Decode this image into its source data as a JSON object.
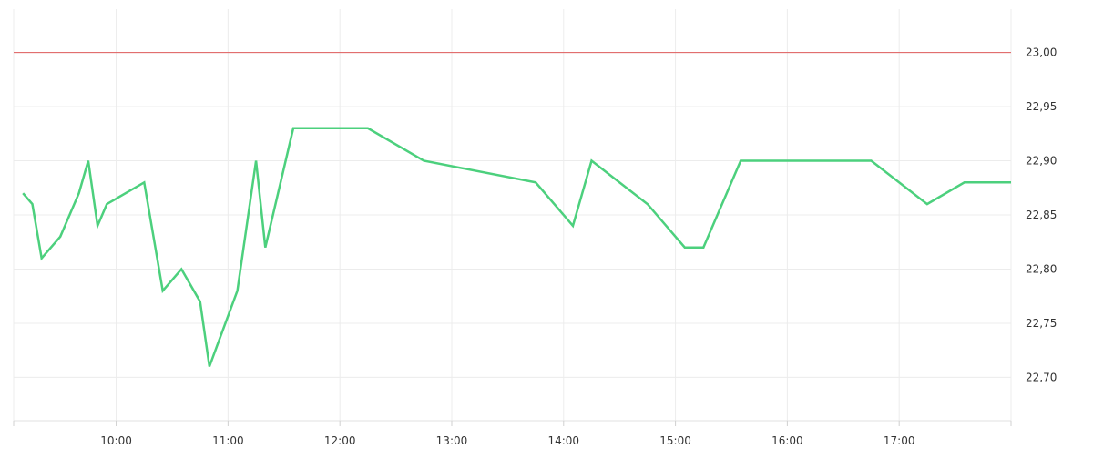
{
  "chart_data": {
    "type": "line",
    "x_axis": {
      "unit": "time of day",
      "min": "09:05",
      "max": "18:00",
      "ticks": [
        "10:00",
        "11:00",
        "12:00",
        "13:00",
        "14:00",
        "15:00",
        "16:00",
        "17:00"
      ]
    },
    "y_axis": {
      "position": "right",
      "min": 22.66,
      "max": 23.04,
      "ticks": [
        "22,70",
        "22,75",
        "22,80",
        "22,85",
        "22,90",
        "22,95",
        "23,00"
      ],
      "tick_values": [
        22.7,
        22.75,
        22.8,
        22.85,
        22.9,
        22.95,
        23.0
      ]
    },
    "reference_line": {
      "value": 23.0,
      "color": "#e05c5c"
    },
    "grid": true,
    "series": [
      {
        "color": "#4cd07d",
        "points": [
          {
            "x": "09:10",
            "y": 22.87
          },
          {
            "x": "09:15",
            "y": 22.86
          },
          {
            "x": "09:20",
            "y": 22.81
          },
          {
            "x": "09:30",
            "y": 22.83
          },
          {
            "x": "09:40",
            "y": 22.87
          },
          {
            "x": "09:45",
            "y": 22.9
          },
          {
            "x": "09:50",
            "y": 22.84
          },
          {
            "x": "09:55",
            "y": 22.86
          },
          {
            "x": "10:15",
            "y": 22.88
          },
          {
            "x": "10:25",
            "y": 22.78
          },
          {
            "x": "10:35",
            "y": 22.8
          },
          {
            "x": "10:45",
            "y": 22.77
          },
          {
            "x": "10:50",
            "y": 22.71
          },
          {
            "x": "11:05",
            "y": 22.78
          },
          {
            "x": "11:15",
            "y": 22.9
          },
          {
            "x": "11:20",
            "y": 22.82
          },
          {
            "x": "11:35",
            "y": 22.93
          },
          {
            "x": "12:15",
            "y": 22.93
          },
          {
            "x": "12:45",
            "y": 22.9
          },
          {
            "x": "13:45",
            "y": 22.88
          },
          {
            "x": "14:05",
            "y": 22.84
          },
          {
            "x": "14:15",
            "y": 22.9
          },
          {
            "x": "14:45",
            "y": 22.86
          },
          {
            "x": "15:05",
            "y": 22.82
          },
          {
            "x": "15:15",
            "y": 22.82
          },
          {
            "x": "15:35",
            "y": 22.9
          },
          {
            "x": "16:45",
            "y": 22.9
          },
          {
            "x": "17:15",
            "y": 22.86
          },
          {
            "x": "17:35",
            "y": 22.88
          },
          {
            "x": "18:00",
            "y": 22.88
          }
        ]
      }
    ]
  }
}
